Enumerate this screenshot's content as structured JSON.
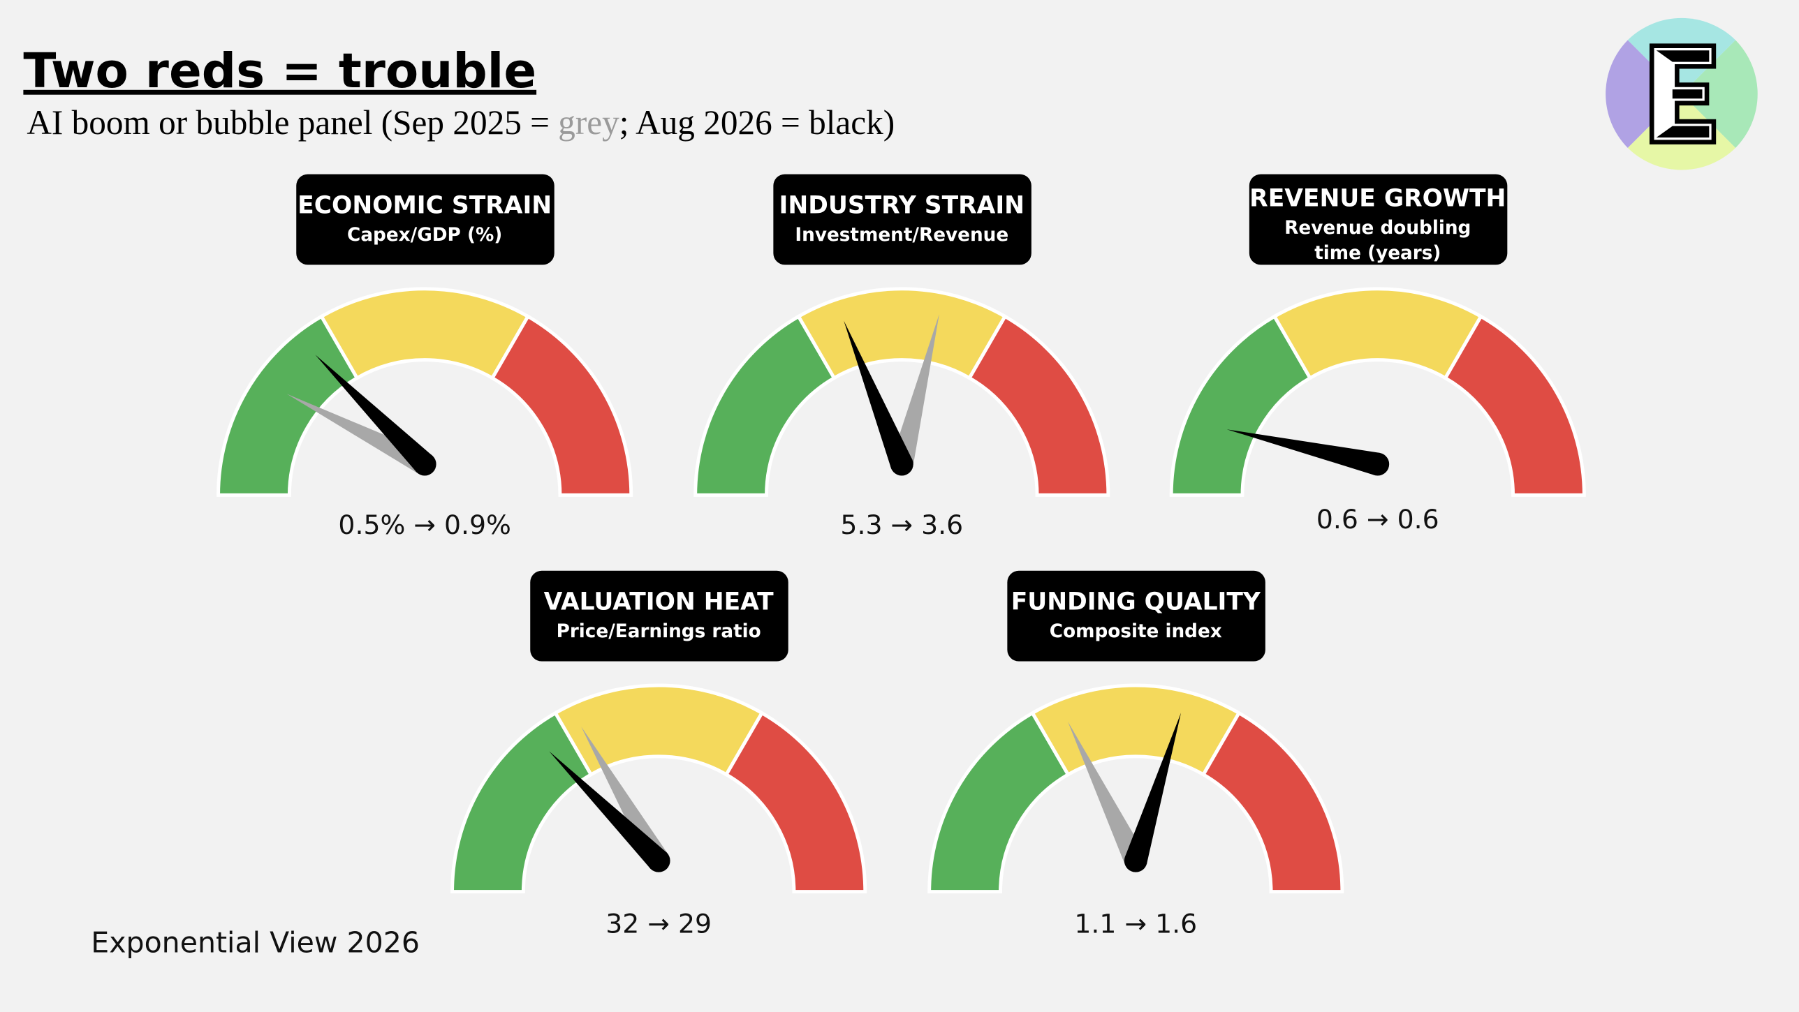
{
  "header": {
    "title": "Two reds = trouble",
    "subtitle": {
      "before": "AI boom or bubble panel (Sep 2025 = ",
      "grey": "grey",
      "after": "; Aug 2026 = black)"
    }
  },
  "gauges": [
    {
      "title": "ECONOMIC STRAIN",
      "subtitle_lines": [
        "Capex/GDP (%)"
      ],
      "reading": "0.5% → 0.9%"
    },
    {
      "title": "INDUSTRY STRAIN",
      "subtitle_lines": [
        "Investment/Revenue"
      ],
      "reading": "5.3 → 3.6"
    },
    {
      "title": "REVENUE GROWTH",
      "subtitle_lines": [
        "Revenue doubling",
        "time (years)"
      ],
      "reading": "0.6 → 0.6"
    },
    {
      "title": "VALUATION HEAT",
      "subtitle_lines": [
        "Price/Earnings ratio"
      ],
      "reading": "32 → 29"
    },
    {
      "title": "FUNDING QUALITY",
      "subtitle_lines": [
        "Composite index"
      ],
      "reading": "1.1 → 1.6"
    }
  ],
  "footer": "Exponential View 2026"
}
